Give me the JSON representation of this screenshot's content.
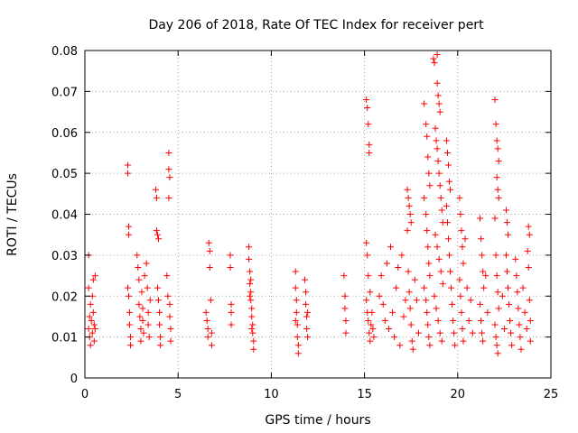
{
  "chart_data": {
    "type": "scatter",
    "title": "Day 206 of 2018, Rate Of TEC Index for receiver pert",
    "xlabel": "GPS time / hours",
    "ylabel": "ROTI / TECUs",
    "xlim": [
      0,
      25
    ],
    "ylim": [
      0,
      0.08
    ],
    "xticks": [
      0,
      5,
      10,
      15,
      20,
      25
    ],
    "xtick_labels": [
      "0",
      "5",
      "10",
      "15",
      "20",
      "25"
    ],
    "yticks": [
      0,
      0.01,
      0.02,
      0.03,
      0.04,
      0.05,
      0.06,
      0.07,
      0.08
    ],
    "ytick_labels": [
      "0",
      "0.01",
      "0.02",
      "0.03",
      "0.04",
      "0.05",
      "0.06",
      "0.07",
      "0.08"
    ],
    "grid": true,
    "marker": "+",
    "marker_color": "#ff0000",
    "series": [
      {
        "points": [
          [
            0.2,
            0.03
          ],
          [
            0.2,
            0.022
          ],
          [
            0.2,
            0.012
          ],
          [
            0.25,
            0.015
          ],
          [
            0.25,
            0.01
          ],
          [
            0.3,
            0.018
          ],
          [
            0.3,
            0.008
          ],
          [
            0.35,
            0.014
          ],
          [
            0.4,
            0.02
          ],
          [
            0.4,
            0.011
          ],
          [
            0.45,
            0.024
          ],
          [
            0.45,
            0.016
          ],
          [
            0.5,
            0.013
          ],
          [
            0.5,
            0.009
          ],
          [
            0.55,
            0.025
          ],
          [
            0.55,
            0.012
          ],
          [
            2.3,
            0.052
          ],
          [
            2.3,
            0.05
          ],
          [
            2.35,
            0.037
          ],
          [
            2.35,
            0.035
          ],
          [
            2.3,
            0.022
          ],
          [
            2.35,
            0.02
          ],
          [
            2.4,
            0.016
          ],
          [
            2.4,
            0.013
          ],
          [
            2.45,
            0.01
          ],
          [
            2.45,
            0.008
          ],
          [
            2.8,
            0.03
          ],
          [
            2.85,
            0.027
          ],
          [
            2.9,
            0.024
          ],
          [
            2.9,
            0.018
          ],
          [
            2.95,
            0.015
          ],
          [
            3.0,
            0.012
          ],
          [
            3.0,
            0.009
          ],
          [
            3.05,
            0.021
          ],
          [
            3.1,
            0.017
          ],
          [
            3.1,
            0.014
          ],
          [
            3.15,
            0.011
          ],
          [
            3.2,
            0.025
          ],
          [
            3.3,
            0.028
          ],
          [
            3.35,
            0.022
          ],
          [
            3.4,
            0.016
          ],
          [
            3.4,
            0.013
          ],
          [
            3.45,
            0.01
          ],
          [
            3.5,
            0.019
          ],
          [
            3.8,
            0.046
          ],
          [
            3.85,
            0.044
          ],
          [
            3.85,
            0.036
          ],
          [
            3.9,
            0.035
          ],
          [
            3.95,
            0.034
          ],
          [
            3.9,
            0.022
          ],
          [
            3.95,
            0.019
          ],
          [
            4.0,
            0.016
          ],
          [
            4.0,
            0.013
          ],
          [
            4.05,
            0.01
          ],
          [
            4.05,
            0.008
          ],
          [
            4.4,
            0.025
          ],
          [
            4.45,
            0.02
          ],
          [
            4.5,
            0.055
          ],
          [
            4.5,
            0.051
          ],
          [
            4.55,
            0.049
          ],
          [
            4.5,
            0.044
          ],
          [
            4.55,
            0.018
          ],
          [
            4.55,
            0.015
          ],
          [
            4.6,
            0.012
          ],
          [
            4.6,
            0.009
          ],
          [
            6.5,
            0.016
          ],
          [
            6.55,
            0.014
          ],
          [
            6.6,
            0.012
          ],
          [
            6.6,
            0.01
          ],
          [
            6.65,
            0.033
          ],
          [
            6.7,
            0.031
          ],
          [
            6.7,
            0.027
          ],
          [
            6.75,
            0.019
          ],
          [
            6.8,
            0.008
          ],
          [
            6.8,
            0.011
          ],
          [
            7.8,
            0.03
          ],
          [
            7.8,
            0.027
          ],
          [
            7.85,
            0.018
          ],
          [
            7.85,
            0.016
          ],
          [
            7.85,
            0.013
          ],
          [
            8.8,
            0.032
          ],
          [
            8.8,
            0.029
          ],
          [
            8.85,
            0.026
          ],
          [
            8.85,
            0.023
          ],
          [
            8.9,
            0.021
          ],
          [
            8.9,
            0.019
          ],
          [
            8.95,
            0.017
          ],
          [
            8.95,
            0.015
          ],
          [
            9.0,
            0.013
          ],
          [
            9.0,
            0.011
          ],
          [
            9.05,
            0.009
          ],
          [
            9.05,
            0.007
          ],
          [
            8.85,
            0.02
          ],
          [
            8.9,
            0.024
          ],
          [
            8.95,
            0.012
          ],
          [
            11.3,
            0.026
          ],
          [
            11.3,
            0.022
          ],
          [
            11.35,
            0.019
          ],
          [
            11.35,
            0.016
          ],
          [
            11.4,
            0.013
          ],
          [
            11.4,
            0.01
          ],
          [
            11.45,
            0.008
          ],
          [
            11.45,
            0.006
          ],
          [
            11.3,
            0.014
          ],
          [
            11.8,
            0.024
          ],
          [
            11.85,
            0.021
          ],
          [
            11.85,
            0.018
          ],
          [
            11.9,
            0.015
          ],
          [
            11.9,
            0.012
          ],
          [
            11.95,
            0.01
          ],
          [
            11.95,
            0.016
          ],
          [
            13.9,
            0.025
          ],
          [
            13.95,
            0.02
          ],
          [
            13.95,
            0.017
          ],
          [
            14.0,
            0.014
          ],
          [
            14.0,
            0.011
          ],
          [
            15.1,
            0.068
          ],
          [
            15.15,
            0.066
          ],
          [
            15.2,
            0.062
          ],
          [
            15.25,
            0.057
          ],
          [
            15.25,
            0.055
          ],
          [
            15.1,
            0.033
          ],
          [
            15.15,
            0.03
          ],
          [
            15.2,
            0.025
          ],
          [
            15.1,
            0.019
          ],
          [
            15.15,
            0.016
          ],
          [
            15.2,
            0.014
          ],
          [
            15.25,
            0.011
          ],
          [
            15.3,
            0.009
          ],
          [
            15.35,
            0.013
          ],
          [
            15.4,
            0.016
          ],
          [
            15.45,
            0.012
          ],
          [
            15.5,
            0.01
          ],
          [
            15.3,
            0.021
          ],
          [
            15.8,
            0.02
          ],
          [
            15.9,
            0.025
          ],
          [
            16.0,
            0.018
          ],
          [
            16.1,
            0.014
          ],
          [
            16.2,
            0.028
          ],
          [
            16.3,
            0.012
          ],
          [
            16.4,
            0.032
          ],
          [
            16.5,
            0.016
          ],
          [
            16.6,
            0.01
          ],
          [
            16.7,
            0.022
          ],
          [
            16.8,
            0.027
          ],
          [
            16.9,
            0.008
          ],
          [
            17.0,
            0.03
          ],
          [
            17.1,
            0.015
          ],
          [
            17.2,
            0.019
          ],
          [
            17.3,
            0.046
          ],
          [
            17.35,
            0.044
          ],
          [
            17.4,
            0.042
          ],
          [
            17.45,
            0.04
          ],
          [
            17.5,
            0.038
          ],
          [
            17.3,
            0.036
          ],
          [
            17.35,
            0.026
          ],
          [
            17.4,
            0.021
          ],
          [
            17.45,
            0.017
          ],
          [
            17.5,
            0.013
          ],
          [
            17.55,
            0.009
          ],
          [
            17.6,
            0.007
          ],
          [
            17.7,
            0.024
          ],
          [
            17.8,
            0.019
          ],
          [
            17.9,
            0.011
          ],
          [
            18.2,
            0.067
          ],
          [
            18.3,
            0.062
          ],
          [
            18.35,
            0.059
          ],
          [
            18.4,
            0.054
          ],
          [
            18.45,
            0.05
          ],
          [
            18.5,
            0.047
          ],
          [
            18.2,
            0.044
          ],
          [
            18.3,
            0.04
          ],
          [
            18.35,
            0.036
          ],
          [
            18.4,
            0.032
          ],
          [
            18.45,
            0.028
          ],
          [
            18.5,
            0.025
          ],
          [
            18.2,
            0.022
          ],
          [
            18.3,
            0.019
          ],
          [
            18.35,
            0.016
          ],
          [
            18.4,
            0.013
          ],
          [
            18.45,
            0.01
          ],
          [
            18.5,
            0.008
          ],
          [
            18.7,
            0.078
          ],
          [
            18.75,
            0.077
          ],
          [
            18.9,
            0.079
          ],
          [
            18.9,
            0.072
          ],
          [
            18.95,
            0.069
          ],
          [
            19.0,
            0.067
          ],
          [
            19.05,
            0.065
          ],
          [
            18.8,
            0.061
          ],
          [
            18.85,
            0.058
          ],
          [
            18.9,
            0.056
          ],
          [
            18.95,
            0.053
          ],
          [
            19.0,
            0.05
          ],
          [
            19.05,
            0.047
          ],
          [
            19.1,
            0.044
          ],
          [
            19.15,
            0.041
          ],
          [
            19.2,
            0.038
          ],
          [
            18.8,
            0.035
          ],
          [
            18.9,
            0.032
          ],
          [
            19.0,
            0.029
          ],
          [
            19.1,
            0.026
          ],
          [
            19.2,
            0.023
          ],
          [
            18.75,
            0.02
          ],
          [
            18.85,
            0.017
          ],
          [
            18.95,
            0.014
          ],
          [
            19.05,
            0.011
          ],
          [
            19.15,
            0.009
          ],
          [
            19.4,
            0.058
          ],
          [
            19.45,
            0.055
          ],
          [
            19.5,
            0.052
          ],
          [
            19.55,
            0.048
          ],
          [
            19.6,
            0.046
          ],
          [
            19.4,
            0.042
          ],
          [
            19.45,
            0.038
          ],
          [
            19.5,
            0.034
          ],
          [
            19.55,
            0.03
          ],
          [
            19.6,
            0.026
          ],
          [
            19.65,
            0.022
          ],
          [
            19.7,
            0.018
          ],
          [
            19.75,
            0.014
          ],
          [
            19.8,
            0.011
          ],
          [
            19.85,
            0.008
          ],
          [
            20.1,
            0.044
          ],
          [
            20.15,
            0.04
          ],
          [
            20.2,
            0.036
          ],
          [
            20.25,
            0.032
          ],
          [
            20.3,
            0.028
          ],
          [
            20.1,
            0.024
          ],
          [
            20.15,
            0.02
          ],
          [
            20.2,
            0.016
          ],
          [
            20.25,
            0.012
          ],
          [
            20.3,
            0.009
          ],
          [
            20.4,
            0.034
          ],
          [
            20.5,
            0.022
          ],
          [
            20.6,
            0.014
          ],
          [
            20.7,
            0.019
          ],
          [
            20.8,
            0.011
          ],
          [
            21.2,
            0.039
          ],
          [
            21.25,
            0.034
          ],
          [
            21.3,
            0.03
          ],
          [
            21.35,
            0.026
          ],
          [
            21.4,
            0.022
          ],
          [
            21.2,
            0.018
          ],
          [
            21.25,
            0.014
          ],
          [
            21.3,
            0.011
          ],
          [
            21.35,
            0.009
          ],
          [
            21.5,
            0.025
          ],
          [
            21.6,
            0.016
          ],
          [
            22.0,
            0.068
          ],
          [
            22.05,
            0.062
          ],
          [
            22.1,
            0.058
          ],
          [
            22.15,
            0.056
          ],
          [
            22.2,
            0.053
          ],
          [
            22.1,
            0.049
          ],
          [
            22.15,
            0.046
          ],
          [
            22.2,
            0.044
          ],
          [
            22.0,
            0.039
          ],
          [
            22.05,
            0.03
          ],
          [
            22.1,
            0.025
          ],
          [
            22.15,
            0.021
          ],
          [
            22.2,
            0.017
          ],
          [
            22.0,
            0.013
          ],
          [
            22.05,
            0.01
          ],
          [
            22.1,
            0.008
          ],
          [
            22.15,
            0.006
          ],
          [
            22.6,
            0.041
          ],
          [
            22.65,
            0.038
          ],
          [
            22.7,
            0.035
          ],
          [
            22.6,
            0.03
          ],
          [
            22.65,
            0.026
          ],
          [
            22.7,
            0.022
          ],
          [
            22.75,
            0.018
          ],
          [
            22.8,
            0.014
          ],
          [
            22.85,
            0.011
          ],
          [
            22.9,
            0.008
          ],
          [
            22.4,
            0.02
          ],
          [
            22.5,
            0.012
          ],
          [
            23.1,
            0.029
          ],
          [
            23.15,
            0.025
          ],
          [
            23.2,
            0.021
          ],
          [
            23.25,
            0.017
          ],
          [
            23.3,
            0.013
          ],
          [
            23.35,
            0.01
          ],
          [
            23.4,
            0.007
          ],
          [
            23.5,
            0.022
          ],
          [
            23.6,
            0.016
          ],
          [
            23.7,
            0.012
          ],
          [
            23.8,
            0.037
          ],
          [
            23.85,
            0.035
          ],
          [
            23.75,
            0.031
          ],
          [
            23.8,
            0.027
          ],
          [
            23.85,
            0.019
          ],
          [
            23.9,
            0.009
          ],
          [
            23.9,
            0.014
          ]
        ]
      }
    ]
  }
}
